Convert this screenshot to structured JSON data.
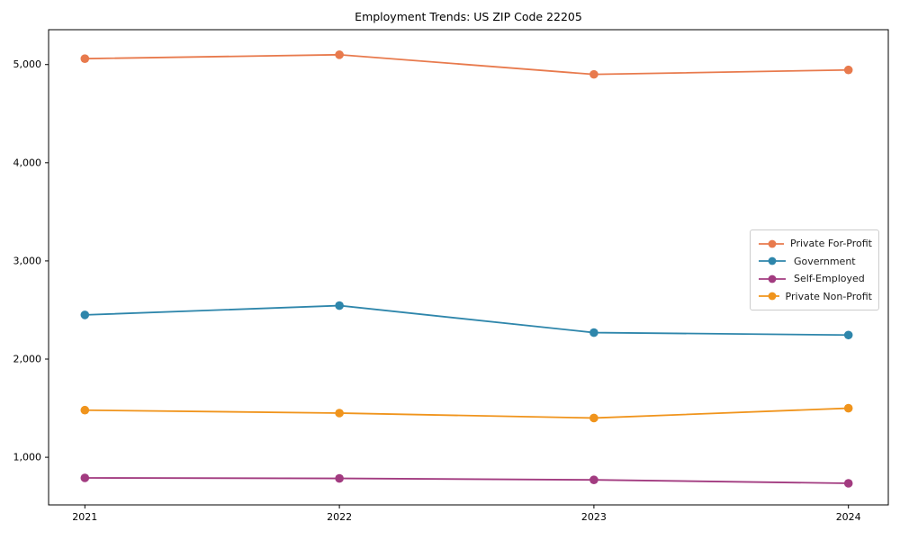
{
  "chart_data": {
    "type": "line",
    "title": "Employment Trends: US ZIP Code 22205",
    "xlabel": "",
    "ylabel": "",
    "x": [
      2021,
      2022,
      2023,
      2024
    ],
    "x_tick_labels": [
      "2021",
      "2022",
      "2023",
      "2024"
    ],
    "y_ticks": [
      1000,
      2000,
      3000,
      4000,
      5000
    ],
    "y_tick_labels": [
      "1,000",
      "2,000",
      "3,000",
      "4,000",
      "5,000"
    ],
    "ylim": [
      515,
      5355
    ],
    "grid": false,
    "legend_position": "center-right",
    "marker": "circle",
    "series": [
      {
        "name": "Private For-Profit",
        "color": "#E87A4D",
        "values": [
          5060,
          5100,
          4900,
          4945
        ]
      },
      {
        "name": "Government",
        "color": "#2E86AB",
        "values": [
          2450,
          2545,
          2270,
          2245
        ]
      },
      {
        "name": "Self-Employed",
        "color": "#A23B80",
        "values": [
          790,
          785,
          770,
          735
        ]
      },
      {
        "name": "Private Non-Profit",
        "color": "#F0941C",
        "values": [
          1480,
          1450,
          1400,
          1500
        ]
      }
    ]
  }
}
